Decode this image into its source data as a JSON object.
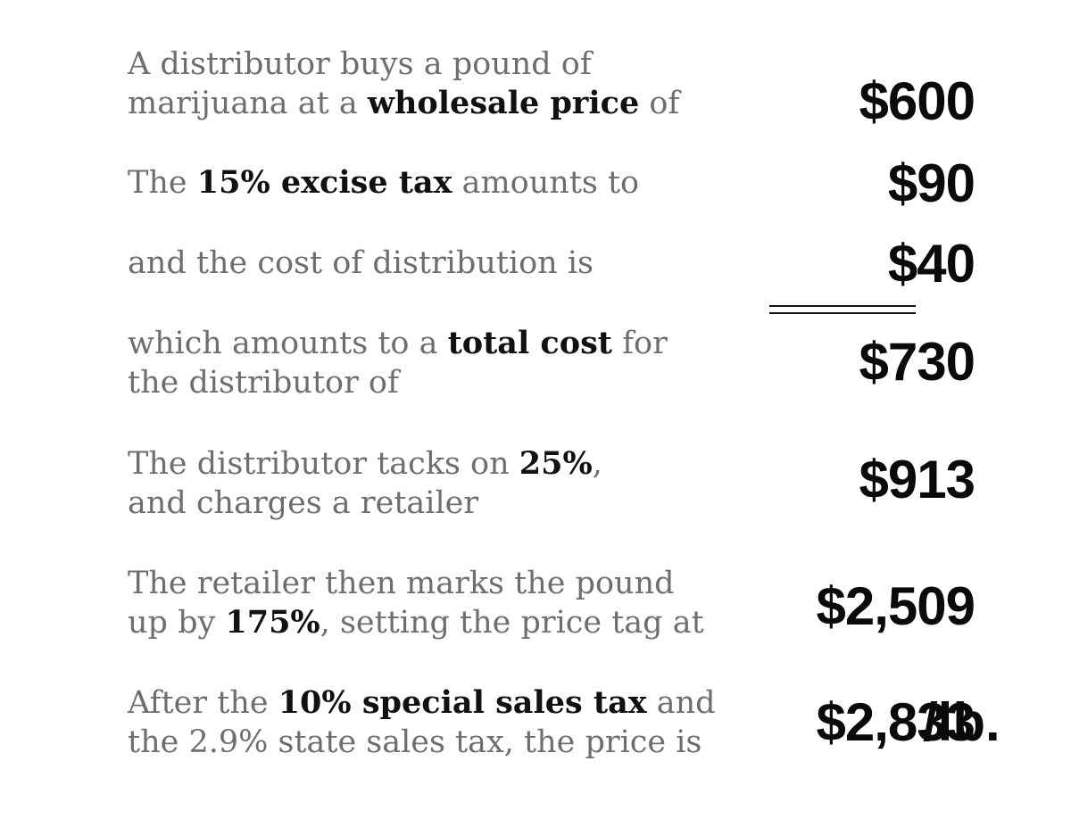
{
  "rows": [
    {
      "parts": [
        {
          "text": "A distributor buys a pound of marijuana at a "
        },
        {
          "text": "wholesale price",
          "bold": true
        },
        {
          "text": " of"
        }
      ],
      "amount": "$600"
    },
    {
      "parts": [
        {
          "text": "The "
        },
        {
          "text": "15% excise tax",
          "bold": true
        },
        {
          "text": " amounts to"
        }
      ],
      "amount": "$90"
    },
    {
      "parts": [
        {
          "text": "and the cost of distribution is"
        }
      ],
      "amount": "$40"
    },
    {
      "parts": [
        {
          "text": "which amounts to a "
        },
        {
          "text": "total cost",
          "bold": true
        },
        {
          "text": " for the distributor of"
        }
      ],
      "amount": "$730"
    },
    {
      "parts": [
        {
          "text": "The distributor tacks on "
        },
        {
          "text": "25%",
          "bold": true
        },
        {
          "text": ", and charges a retailer"
        }
      ],
      "amount": "$913"
    },
    {
      "parts": [
        {
          "text": "The retailer then marks the pound up by "
        },
        {
          "text": "175%",
          "bold": true
        },
        {
          "text": ", setting the price tag at"
        }
      ],
      "amount": "$2,509"
    },
    {
      "parts": [
        {
          "text": "After the "
        },
        {
          "text": "10% special sales tax",
          "bold": true
        },
        {
          "text": " and the 2.9% state sales tax, the price is"
        }
      ],
      "amount": "$2,833",
      "unit": "/lb."
    }
  ]
}
